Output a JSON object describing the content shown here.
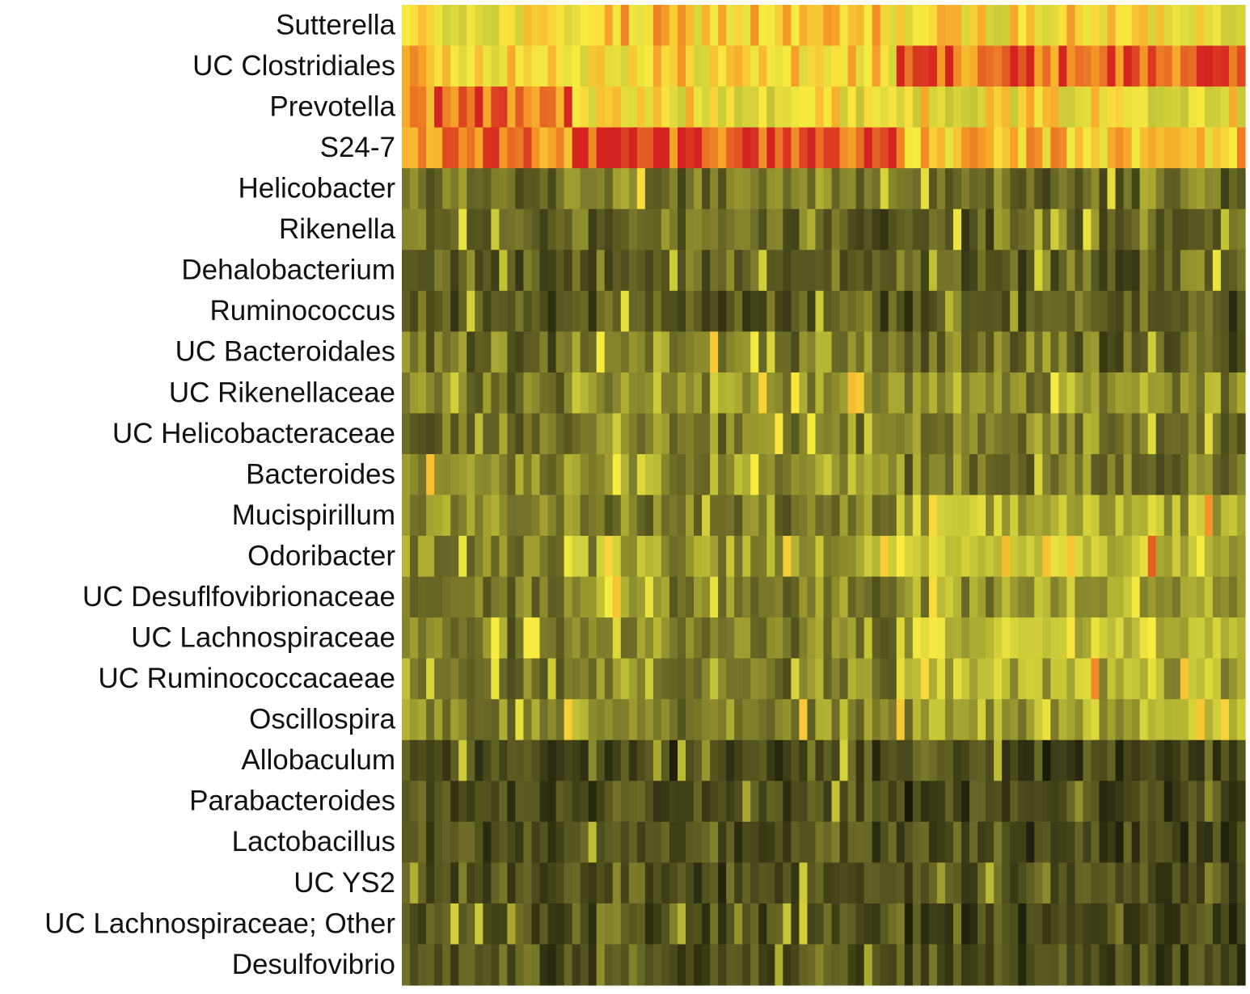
{
  "chart_data": {
    "type": "heatmap",
    "title": "",
    "xlabel": "",
    "ylabel": "",
    "rows": [
      "Sutterella",
      "UC Clostridiales",
      "Prevotella",
      "S24-7",
      "Helicobacter",
      "Rikenella",
      "Dehalobacterium",
      "Ruminococcus",
      "UC Bacteroidales",
      "UC Rikenellaceae",
      "UC Helicobacteraceae",
      "Bacteroides",
      "Mucispirillum",
      "Odoribacter",
      "UC Desuflfovibrionaceae",
      "UC Lachnospiraceae",
      "UC Ruminococcacaeae",
      "Oscillospira",
      "Allobaculum",
      "Parabacteroides",
      "Lactobacillus",
      "UC YS2",
      "UC Lachnospiraceae; Other",
      "Desulfovibrio"
    ],
    "column_count": 104,
    "groups": [
      {
        "start": 0,
        "end": 20
      },
      {
        "start": 21,
        "end": 60
      },
      {
        "start": 61,
        "end": 103
      }
    ],
    "profiles": [
      [
        0.62,
        0.7,
        0.66
      ],
      [
        0.7,
        0.68,
        0.9
      ],
      [
        0.88,
        0.64,
        0.64
      ],
      [
        0.86,
        0.94,
        0.72
      ],
      [
        0.3,
        0.3,
        0.28
      ],
      [
        0.26,
        0.26,
        0.26
      ],
      [
        0.24,
        0.24,
        0.24
      ],
      [
        0.24,
        0.24,
        0.22
      ],
      [
        0.28,
        0.34,
        0.26
      ],
      [
        0.32,
        0.4,
        0.36
      ],
      [
        0.3,
        0.32,
        0.32
      ],
      [
        0.4,
        0.4,
        0.3
      ],
      [
        0.36,
        0.3,
        0.44
      ],
      [
        0.36,
        0.42,
        0.5
      ],
      [
        0.32,
        0.34,
        0.4
      ],
      [
        0.32,
        0.34,
        0.5
      ],
      [
        0.34,
        0.34,
        0.46
      ],
      [
        0.36,
        0.36,
        0.42
      ],
      [
        0.18,
        0.17,
        0.15
      ],
      [
        0.2,
        0.19,
        0.16
      ],
      [
        0.21,
        0.2,
        0.17
      ],
      [
        0.21,
        0.2,
        0.17
      ],
      [
        0.22,
        0.2,
        0.18
      ],
      [
        0.22,
        0.21,
        0.18
      ]
    ],
    "color_scale": {
      "low": "#141408",
      "mid_dark": "#6e6e28",
      "mid": "#c8c838",
      "bright": "#f8ec40",
      "orange": "#f6a028",
      "high": "#d42420"
    },
    "legend": "none",
    "grid": false
  }
}
